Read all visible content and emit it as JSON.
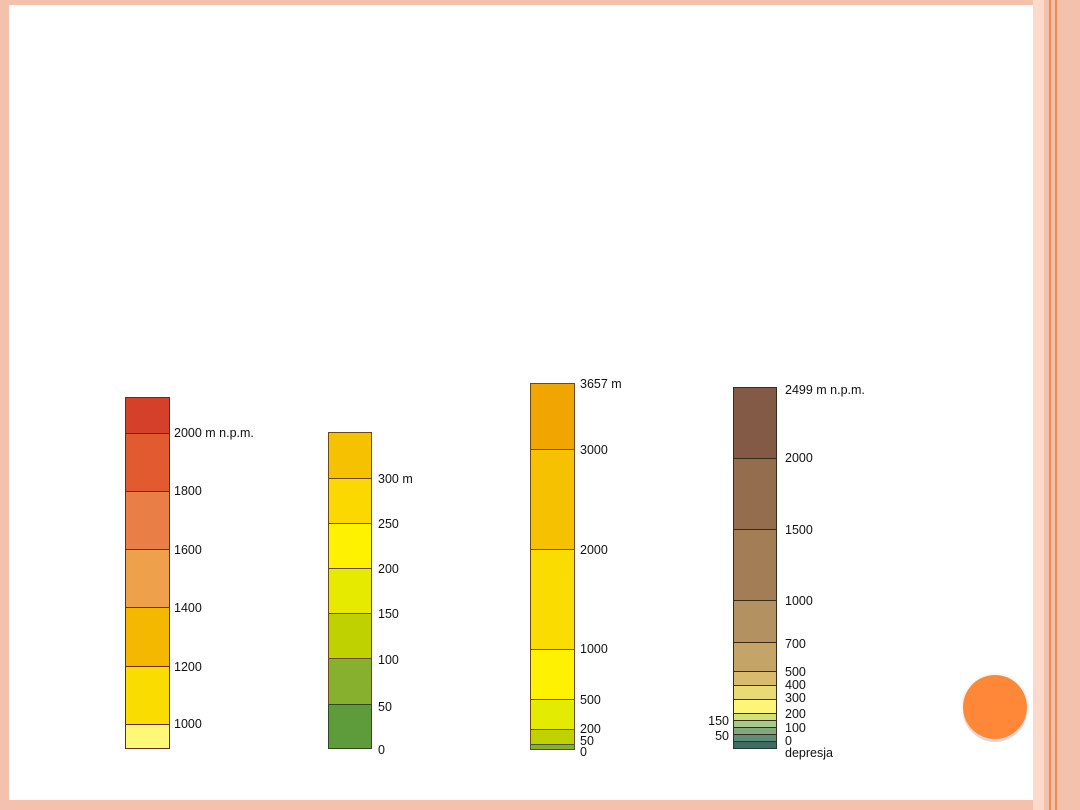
{
  "scale1": {
    "colors": [
      "#d4402a",
      "#e25a2f",
      "#e97f46",
      "#eea04b",
      "#f4b800",
      "#fbdc00",
      "#fff776"
    ],
    "labels": [
      "2000 m n.p.m.",
      "1800",
      "1600",
      "1400",
      "1200",
      "1000"
    ]
  },
  "scale2": {
    "colors": [
      "#f6c100",
      "#fbd900",
      "#fff200",
      "#e5ea00",
      "#bfd200",
      "#86b02d",
      "#5e9b3a"
    ],
    "labels": [
      "300 m",
      "250",
      "200",
      "150",
      "100",
      "50",
      "0"
    ]
  },
  "scale3": {
    "colors": [
      "#f0a500",
      "#f6c100",
      "#fbdc00",
      "#fff200",
      "#e3ec00",
      "#bfd200",
      "#86b02d"
    ],
    "labels": [
      "3657 m",
      "3000",
      "2000",
      "1000",
      "500",
      "200",
      "50",
      "0"
    ]
  },
  "scale4": {
    "colors": [
      "#835a45",
      "#946c4e",
      "#a37d55",
      "#b49160",
      "#c5a567",
      "#d8bb6c",
      "#e8da75",
      "#fdf57a",
      "#d2e27a",
      "#a7c98b",
      "#7fa980",
      "#5d8e79",
      "#3f6a63"
    ],
    "labels_right": [
      "2499 m n.p.m.",
      "2000",
      "1500",
      "1000",
      "700",
      "500",
      "400",
      "300",
      "200",
      "100",
      "0",
      "depresja"
    ],
    "labels_left": [
      "150",
      "50"
    ]
  }
}
